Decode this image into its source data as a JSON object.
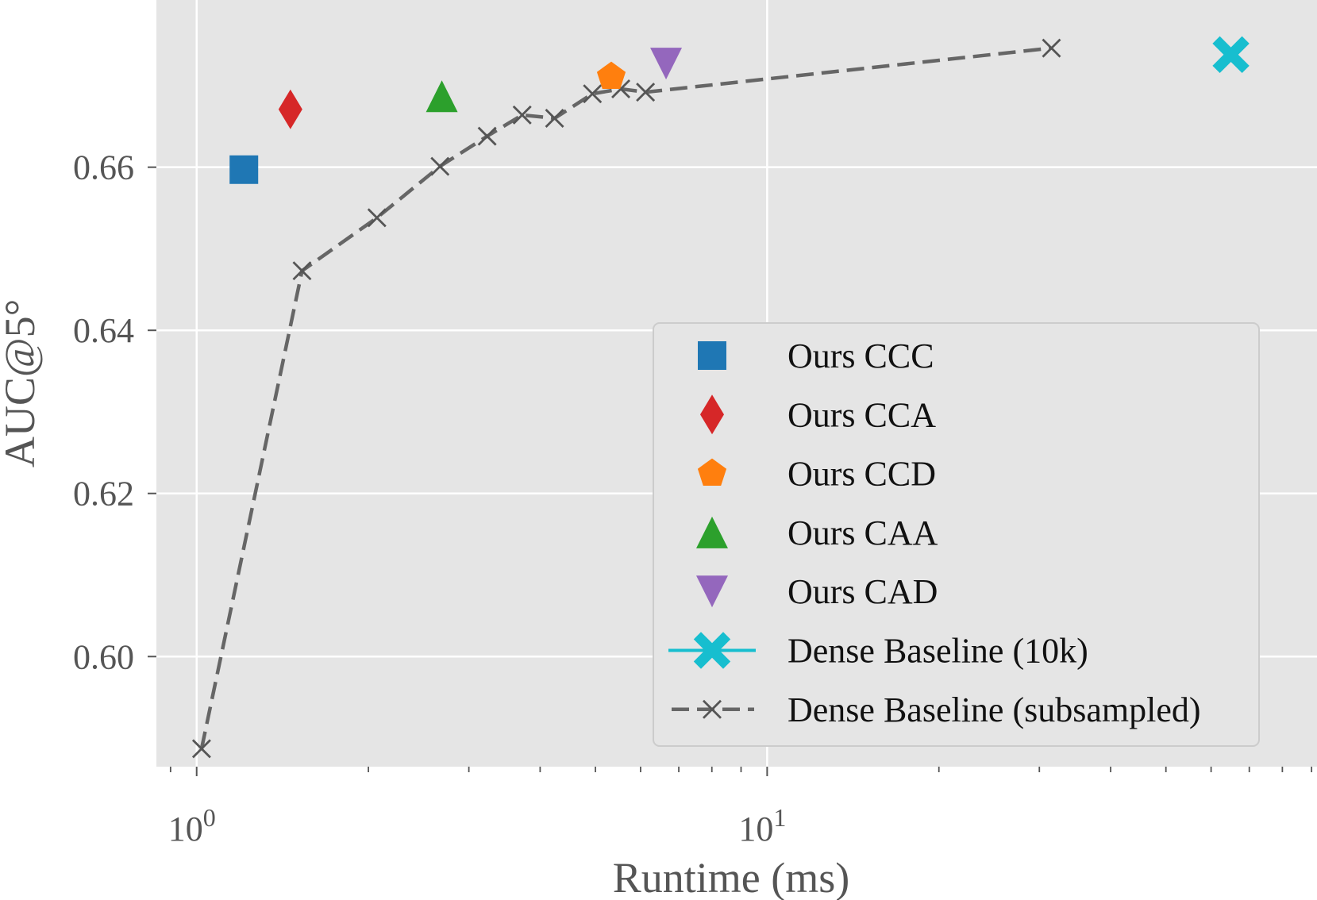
{
  "chart_data": {
    "type": "scatter",
    "xscale": "log",
    "xlim": [
      0.85,
      92
    ],
    "ylim": [
      0.5865,
      0.6805
    ],
    "xlabel": "Runtime (ms)",
    "ylabel": "AUC@5°",
    "grid": true,
    "legend_position": "center-right",
    "x_major_ticks": [
      {
        "value": 1,
        "base": "10",
        "exp": "0"
      },
      {
        "value": 10,
        "base": "10",
        "exp": "1"
      }
    ],
    "x_minor_ticks": [
      0.9,
      2,
      3,
      4,
      5,
      6,
      7,
      8,
      9,
      20,
      30,
      40,
      50,
      60,
      70,
      80,
      90
    ],
    "y_ticks": [
      {
        "value": 0.6,
        "label": "0.60"
      },
      {
        "value": 0.62,
        "label": "0.62"
      },
      {
        "value": 0.64,
        "label": "0.64"
      },
      {
        "value": 0.66,
        "label": "0.66"
      }
    ],
    "series": [
      {
        "name": "Ours CCC",
        "marker": "square",
        "color": "#1f77b4",
        "points": [
          [
            1.21,
            0.6597
          ]
        ]
      },
      {
        "name": "Ours CCA",
        "marker": "diamond",
        "color": "#d62728",
        "points": [
          [
            1.46,
            0.6671
          ]
        ]
      },
      {
        "name": "Ours CCD",
        "marker": "pentagon",
        "color": "#ff7f0e",
        "points": [
          [
            5.33,
            0.6711
          ]
        ]
      },
      {
        "name": "Ours CAA",
        "marker": "triangle-up",
        "color": "#2ca02c",
        "points": [
          [
            2.69,
            0.6687
          ]
        ]
      },
      {
        "name": "Ours CAD",
        "marker": "triangle-down",
        "color": "#9467bd",
        "points": [
          [
            6.65,
            0.6727
          ]
        ]
      },
      {
        "name": "Dense Baseline (10k)",
        "marker": "x-filled",
        "color": "#17becf",
        "points": [
          [
            65.0,
            0.6738
          ]
        ]
      },
      {
        "name": "Dense Baseline (subsampled)",
        "marker": "x",
        "line": "dashed",
        "color": "#666666",
        "points": [
          [
            1.02,
            0.5887
          ],
          [
            1.53,
            0.6473
          ],
          [
            2.07,
            0.6538
          ],
          [
            2.67,
            0.6601
          ],
          [
            3.23,
            0.6638
          ],
          [
            3.72,
            0.6664
          ],
          [
            4.24,
            0.666
          ],
          [
            4.94,
            0.669
          ],
          [
            5.54,
            0.6696
          ],
          [
            6.12,
            0.6692
          ],
          [
            31.5,
            0.6746
          ]
        ]
      }
    ]
  }
}
